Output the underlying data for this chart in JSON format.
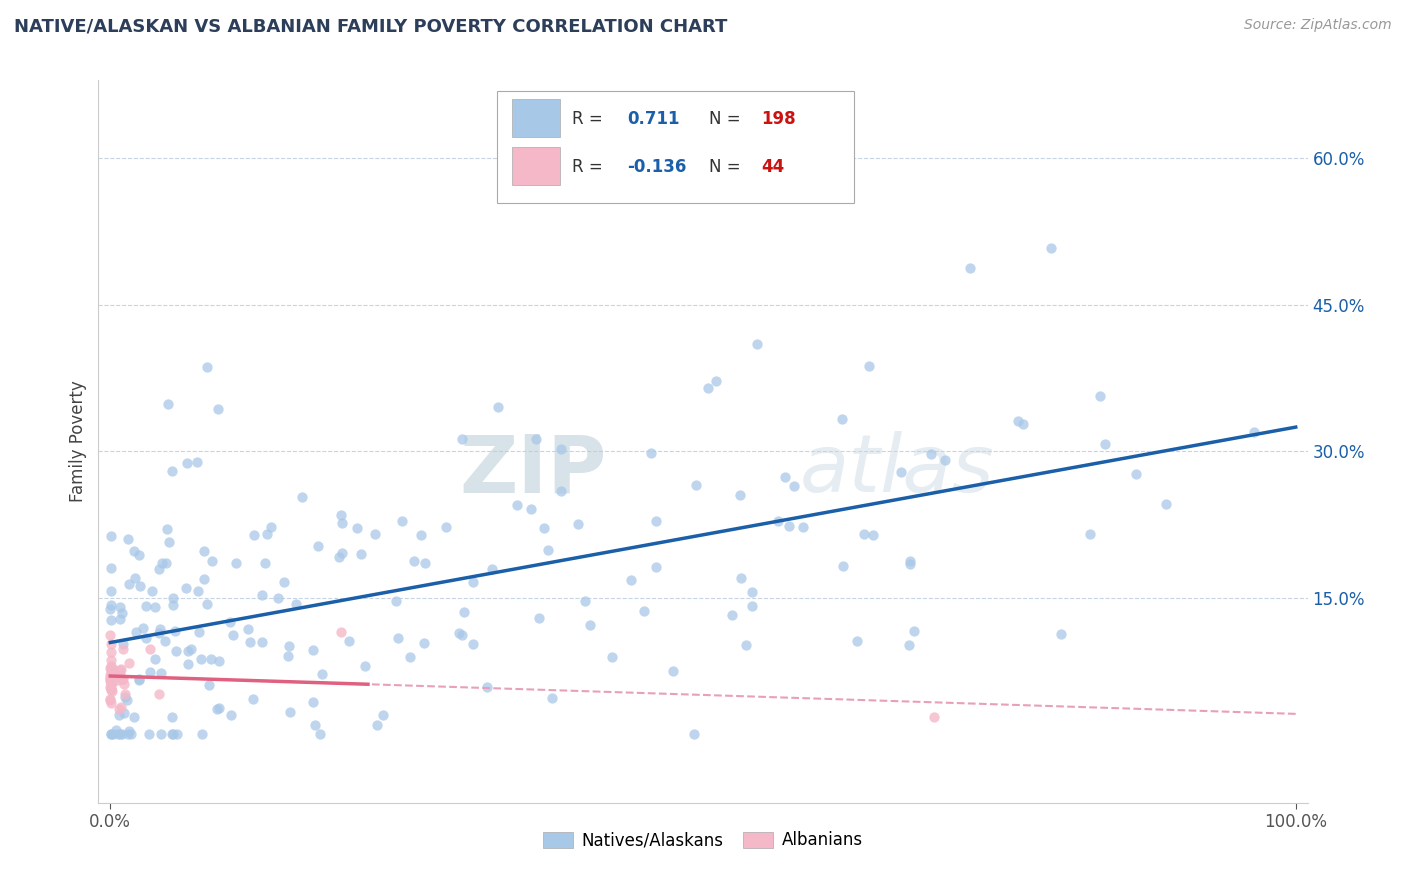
{
  "title": "NATIVE/ALASKAN VS ALBANIAN FAMILY POVERTY CORRELATION CHART",
  "source": "Source: ZipAtlas.com",
  "ylabel": "Family Poverty",
  "xlim": [
    -0.01,
    1.01
  ],
  "ylim": [
    -0.06,
    0.68
  ],
  "ytick_positions": [
    0.15,
    0.3,
    0.45,
    0.6
  ],
  "ytick_labels": [
    "15.0%",
    "30.0%",
    "45.0%",
    "60.0%"
  ],
  "xtick_positions": [
    0.0,
    1.0
  ],
  "xtick_labels": [
    "0.0%",
    "100.0%"
  ],
  "watermark_zip": "ZIP",
  "watermark_atlas": "atlas",
  "blue_R": 0.711,
  "blue_N": 198,
  "pink_R": -0.136,
  "pink_N": 44,
  "blue_color": "#a8c8e8",
  "pink_color": "#f4b8c8",
  "blue_line_color": "#1a5fa8",
  "pink_line_color": "#e06080",
  "pink_dash_color": "#e8a0b8",
  "grid_color": "#c0d0e0",
  "background_color": "#ffffff",
  "title_color": "#2c3e5a",
  "source_color": "#999999",
  "blue_seed": 42,
  "pink_seed": 77
}
